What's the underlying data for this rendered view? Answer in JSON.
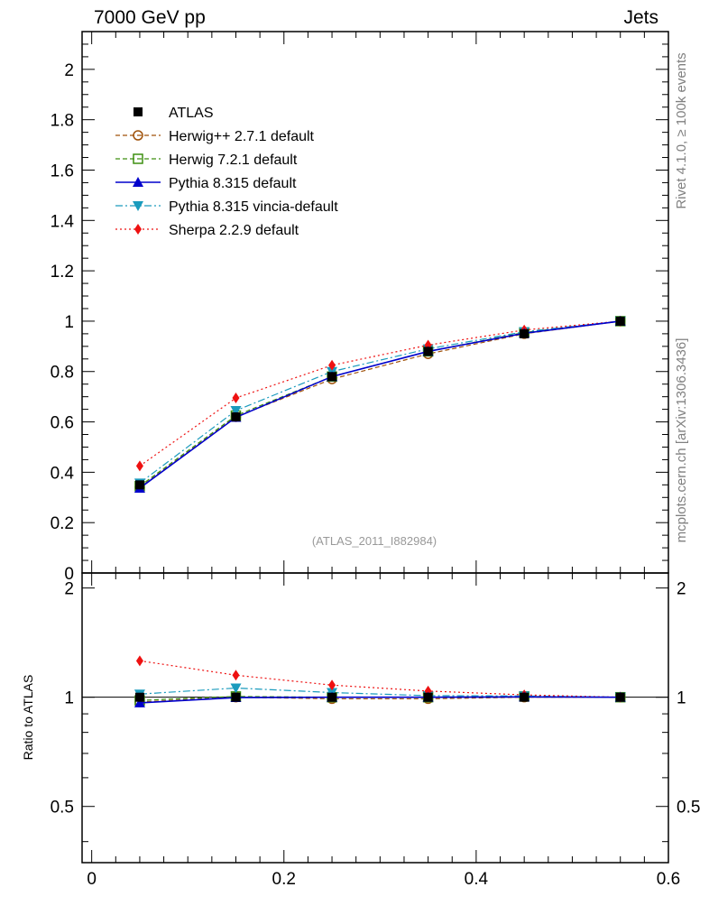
{
  "header": {
    "left_title": "7000 GeV pp",
    "right_title": "Jets"
  },
  "side_labels": {
    "rivet": "Rivet 4.1.0, ≥ 100k events",
    "mcplots": "mcplots.cern.ch [arXiv:1306.3436]"
  },
  "watermark": "(ATLAS_2011_I882984)",
  "ratio_axis_label": "Ratio to ATLAS",
  "colors": {
    "atlas": "#000000",
    "herwigpp": "#a0520a",
    "herwig7": "#3d8f10",
    "pythia": "#0000cc",
    "vincia": "#1a9bbd",
    "sherpa": "#ee1111"
  },
  "chart_data": {
    "type": "line",
    "title": "7000 GeV pp Jets",
    "xlabel": "",
    "ylabel": "",
    "xlim": [
      -0.01,
      0.6
    ],
    "ylim": [
      0,
      2.15
    ],
    "x": [
      0.05,
      0.15,
      0.25,
      0.35,
      0.45,
      0.55
    ],
    "x_ticks": [
      "0",
      "0.2",
      "0.4",
      "0.6"
    ],
    "y_ticks": [
      "0",
      "0.2",
      "0.4",
      "0.6",
      "0.8",
      "1",
      "1.2",
      "1.4",
      "1.6",
      "1.8",
      "2"
    ],
    "series": [
      {
        "key": "atlas",
        "name": "ATLAS",
        "marker": "square-filled",
        "line": "none",
        "values": [
          0.35,
          0.62,
          0.78,
          0.88,
          0.95,
          1.0
        ]
      },
      {
        "key": "herwigpp",
        "name": "Herwig++ 2.7.1 default",
        "marker": "circle-open",
        "line": "dashed",
        "values": [
          0.34,
          0.62,
          0.77,
          0.87,
          0.95,
          1.0
        ]
      },
      {
        "key": "herwig7",
        "name": "Herwig 7.2.1 default",
        "marker": "square-open",
        "line": "dashed",
        "values": [
          0.345,
          0.625,
          0.78,
          0.88,
          0.955,
          1.0
        ]
      },
      {
        "key": "pythia",
        "name": "Pythia 8.315 default",
        "marker": "triangle-up",
        "line": "solid",
        "values": [
          0.337,
          0.618,
          0.78,
          0.88,
          0.952,
          1.0
        ]
      },
      {
        "key": "vincia",
        "name": "Pythia 8.315 vincia-default",
        "marker": "triangle-down",
        "line": "dashdot",
        "values": [
          0.357,
          0.645,
          0.8,
          0.89,
          0.958,
          1.0
        ]
      },
      {
        "key": "sherpa",
        "name": "Sherpa 2.2.9 default",
        "marker": "diamond",
        "line": "dotted",
        "values": [
          0.425,
          0.695,
          0.825,
          0.905,
          0.965,
          1.0
        ]
      }
    ],
    "ratio": {
      "ylabel": "Ratio to ATLAS",
      "ylim": [
        0.35,
        2.2
      ],
      "y_ticks": [
        "0.5",
        "1",
        "2"
      ],
      "series": [
        {
          "key": "herwigpp",
          "values": [
            0.97,
            1.0,
            0.99,
            0.99,
            1.0,
            1.0
          ]
        },
        {
          "key": "herwig7",
          "values": [
            0.98,
            1.005,
            1.0,
            1.0,
            1.005,
            1.0
          ]
        },
        {
          "key": "pythia",
          "values": [
            0.965,
            0.998,
            1.0,
            1.0,
            1.002,
            1.0
          ]
        },
        {
          "key": "vincia",
          "values": [
            1.02,
            1.06,
            1.03,
            1.01,
            1.008,
            1.0
          ]
        },
        {
          "key": "sherpa",
          "values": [
            1.26,
            1.15,
            1.08,
            1.04,
            1.015,
            1.0
          ]
        }
      ]
    }
  }
}
